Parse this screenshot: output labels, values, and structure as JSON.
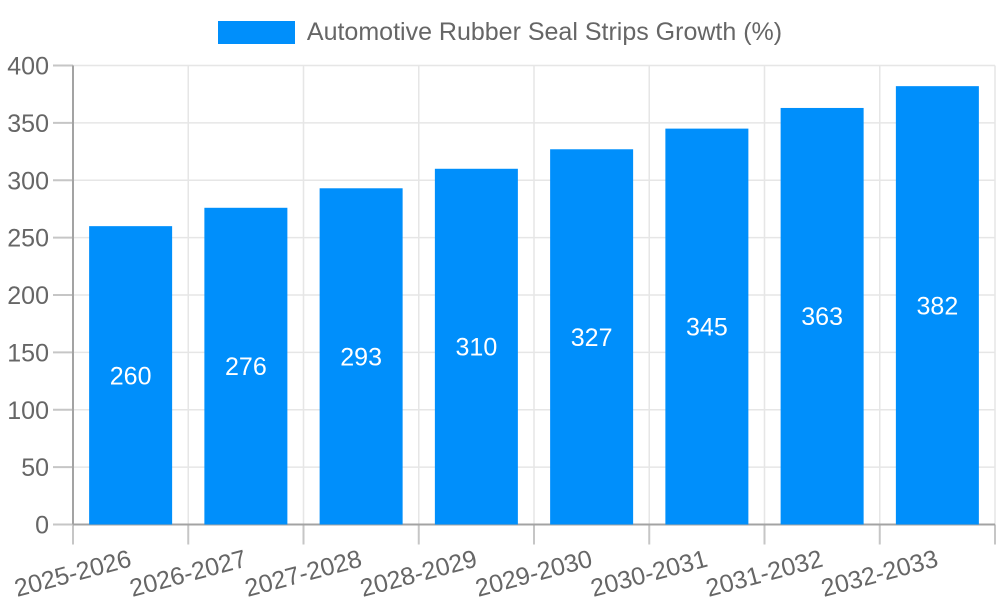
{
  "chart_data": {
    "type": "bar",
    "title": "Automotive Rubber Seal Strips Growth (%)",
    "legend_label": "Automotive Rubber Seal Strips Growth (%)",
    "legend_position": "top",
    "categories": [
      "2025-2026",
      "2026-2027",
      "2027-2028",
      "2028-2029",
      "2029-2030",
      "2030-2031",
      "2031-2032",
      "2032-2033"
    ],
    "values": [
      260,
      276,
      293,
      310,
      327,
      345,
      363,
      382
    ],
    "value_labels": [
      "260",
      "276",
      "293",
      "310",
      "327",
      "345",
      "363",
      "382"
    ],
    "xlabel": "",
    "ylabel": "",
    "ylim": [
      0,
      400
    ],
    "yticks": [
      0,
      50,
      100,
      150,
      200,
      250,
      300,
      350,
      400
    ],
    "grid": true,
    "x_label_rotation_deg": -15,
    "colors": {
      "bar": "#008FFB",
      "value_label": "#FFFFFF",
      "axis_text": "#666666",
      "grid_line": "#E6E6E6",
      "axis_line": "#A3A3A3",
      "tick_mark": "#C6C6C6",
      "background": "#FFFFFF"
    }
  }
}
